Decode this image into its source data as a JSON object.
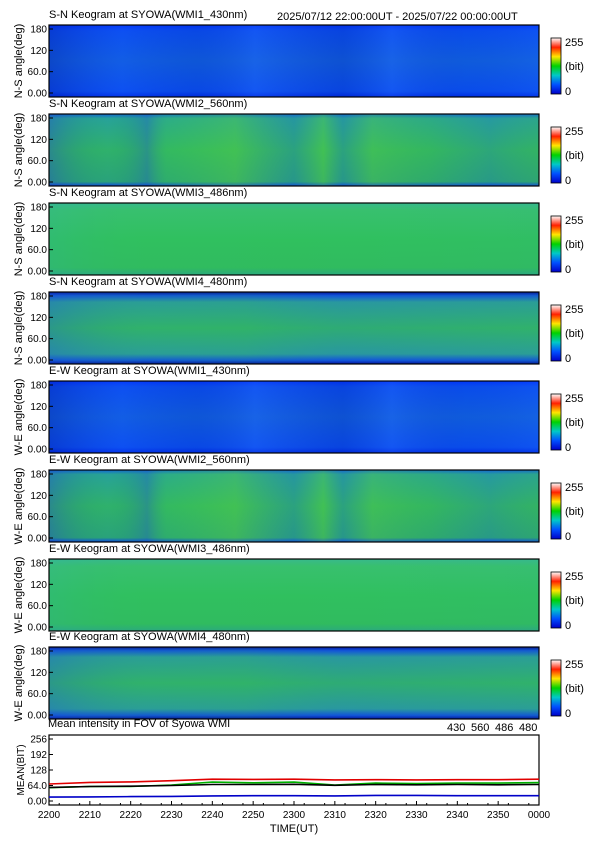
{
  "header": {
    "time_range": "2025/07/12 22:00:00UT - 2025/07/22 00:00:00UT"
  },
  "colorbar": {
    "max_label": "255",
    "unit_label": "(bit)",
    "min_label": "0",
    "stops": [
      "#0000c8",
      "#0050ff",
      "#00c8c8",
      "#00d200",
      "#ffe600",
      "#ff2000",
      "#ffffff"
    ]
  },
  "y_ticks": [
    "180",
    "120",
    "60.0",
    "0.00"
  ],
  "panels": [
    {
      "title": "S-N Keogram at SYOWA(WMI1_430nm)",
      "ylabel": "N-S angle(deg)",
      "kind": "blue"
    },
    {
      "title": "S-N Keogram at SYOWA(WMI2_560nm)",
      "ylabel": "N-S angle(deg)",
      "kind": "green"
    },
    {
      "title": "S-N Keogram at SYOWA(WMI3_486nm)",
      "ylabel": "N-S angle(deg)",
      "kind": "flat"
    },
    {
      "title": "S-N Keogram at SYOWA(WMI4_480nm)",
      "ylabel": "N-S angle(deg)",
      "kind": "mid"
    },
    {
      "title": "E-W Keogram at SYOWA(WMI1_430nm)",
      "ylabel": "W-E angle(deg)",
      "kind": "blue"
    },
    {
      "title": "E-W Keogram at SYOWA(WMI2_560nm)",
      "ylabel": "W-E angle(deg)",
      "kind": "green"
    },
    {
      "title": "E-W Keogram at SYOWA(WMI3_486nm)",
      "ylabel": "W-E angle(deg)",
      "kind": "flat"
    },
    {
      "title": "E-W Keogram at SYOWA(WMI4_480nm)",
      "ylabel": "W-E angle(deg)",
      "kind": "mid"
    }
  ],
  "chart_data": {
    "type": "line",
    "title": "Mean intensity in FOV of Syowa WMI",
    "xlabel": "TIME(UT)",
    "ylabel": "MEAN(BIT)",
    "ylim": [
      0,
      256
    ],
    "xlim": [
      2200,
      2400
    ],
    "y_ticks": [
      "256",
      "192",
      "128",
      "64.0",
      "0.00"
    ],
    "x_ticks": [
      "2200",
      "2210",
      "2220",
      "2230",
      "2240",
      "2250",
      "2300",
      "2310",
      "2320",
      "2330",
      "2340",
      "2350",
      "0000"
    ],
    "legend": [
      {
        "name": "430",
        "color": "#0000c8"
      },
      {
        "name": "560",
        "color": "#00b000"
      },
      {
        "name": "486",
        "color": "#e00000"
      },
      {
        "name": "480",
        "color": "#000000"
      }
    ],
    "series": [
      {
        "name": "430",
        "color": "#0000c8",
        "values": [
          [
            2200,
            16
          ],
          [
            2210,
            17
          ],
          [
            2220,
            18
          ],
          [
            2230,
            19
          ],
          [
            2240,
            21
          ],
          [
            2250,
            22
          ],
          [
            2300,
            22
          ],
          [
            2310,
            21
          ],
          [
            2320,
            23
          ],
          [
            2330,
            23
          ],
          [
            2340,
            22
          ],
          [
            2350,
            22
          ],
          [
            2400,
            22
          ]
        ]
      },
      {
        "name": "560",
        "color": "#00b000",
        "values": [
          [
            2200,
            55
          ],
          [
            2210,
            60
          ],
          [
            2220,
            60
          ],
          [
            2230,
            66
          ],
          [
            2240,
            78
          ],
          [
            2250,
            75
          ],
          [
            2300,
            78
          ],
          [
            2310,
            66
          ],
          [
            2320,
            74
          ],
          [
            2330,
            72
          ],
          [
            2340,
            74
          ],
          [
            2350,
            74
          ],
          [
            2400,
            76
          ]
        ]
      },
      {
        "name": "486",
        "color": "#e00000",
        "values": [
          [
            2200,
            70
          ],
          [
            2210,
            77
          ],
          [
            2220,
            79
          ],
          [
            2230,
            84
          ],
          [
            2240,
            90
          ],
          [
            2250,
            89
          ],
          [
            2300,
            90
          ],
          [
            2310,
            87
          ],
          [
            2320,
            88
          ],
          [
            2330,
            87
          ],
          [
            2340,
            88
          ],
          [
            2350,
            88
          ],
          [
            2400,
            90
          ]
        ]
      },
      {
        "name": "480",
        "color": "#000000",
        "values": [
          [
            2200,
            56
          ],
          [
            2210,
            60
          ],
          [
            2220,
            61
          ],
          [
            2230,
            64
          ],
          [
            2240,
            68
          ],
          [
            2250,
            68
          ],
          [
            2300,
            69
          ],
          [
            2310,
            65
          ],
          [
            2320,
            68
          ],
          [
            2330,
            67
          ],
          [
            2340,
            68
          ],
          [
            2350,
            67
          ],
          [
            2400,
            68
          ]
        ]
      }
    ]
  }
}
